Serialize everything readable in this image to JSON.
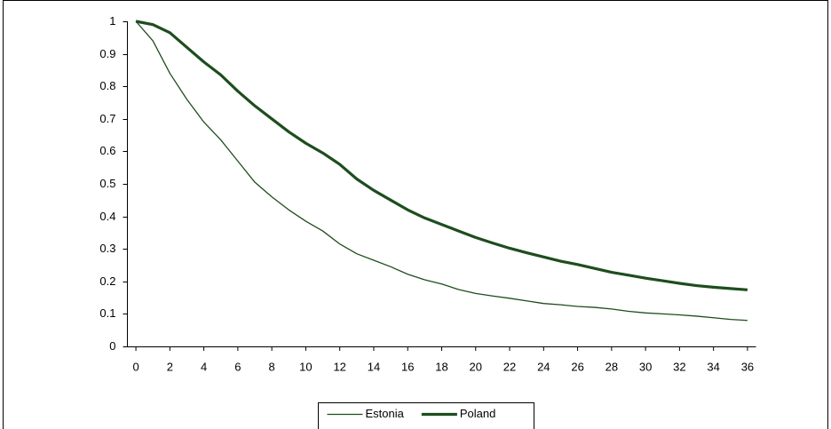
{
  "chart_data": {
    "type": "line",
    "x": [
      0,
      1,
      2,
      3,
      4,
      5,
      6,
      7,
      8,
      9,
      10,
      11,
      12,
      13,
      14,
      15,
      16,
      17,
      18,
      19,
      20,
      21,
      22,
      23,
      24,
      25,
      26,
      27,
      28,
      29,
      30,
      31,
      32,
      33,
      34,
      35,
      36
    ],
    "xlim": [
      -0.5,
      36.5
    ],
    "xticks": [
      0,
      2,
      4,
      6,
      8,
      10,
      12,
      14,
      16,
      18,
      20,
      22,
      24,
      26,
      28,
      30,
      32,
      34,
      36
    ],
    "ylim": [
      0,
      1
    ],
    "yticks": [
      0,
      0.1,
      0.2,
      0.3,
      0.4,
      0.5,
      0.6,
      0.7,
      0.8,
      0.9,
      1
    ],
    "legend": "bottom",
    "series": [
      {
        "name": "Estonia",
        "color": "#1e4d1e",
        "width": 1.3,
        "values": [
          1,
          0.94,
          0.84,
          0.76,
          0.69,
          0.635,
          0.57,
          0.505,
          0.46,
          0.42,
          0.385,
          0.355,
          0.315,
          0.285,
          0.265,
          0.245,
          0.222,
          0.205,
          0.192,
          0.175,
          0.163,
          0.155,
          0.148,
          0.14,
          0.132,
          0.128,
          0.123,
          0.12,
          0.115,
          0.108,
          0.103,
          0.1,
          0.097,
          0.093,
          0.088,
          0.083,
          0.08
        ]
      },
      {
        "name": "Poland",
        "color": "#1e4d1e",
        "width": 3.2,
        "values": [
          1,
          0.99,
          0.965,
          0.92,
          0.875,
          0.835,
          0.785,
          0.74,
          0.7,
          0.66,
          0.625,
          0.595,
          0.56,
          0.515,
          0.48,
          0.45,
          0.42,
          0.395,
          0.375,
          0.355,
          0.335,
          0.318,
          0.302,
          0.288,
          0.275,
          0.262,
          0.252,
          0.24,
          0.228,
          0.219,
          0.21,
          0.202,
          0.194,
          0.187,
          0.182,
          0.178,
          0.174
        ]
      }
    ]
  }
}
